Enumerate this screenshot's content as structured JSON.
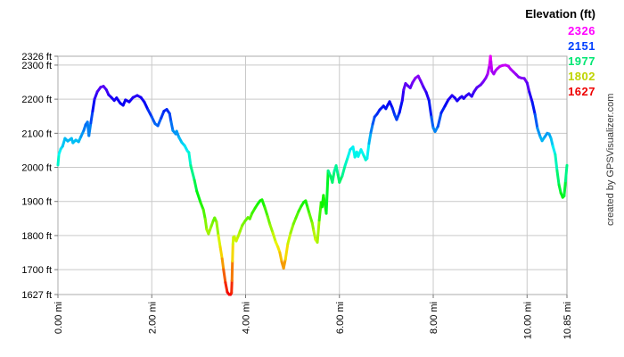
{
  "watermark": "created by GPSVisualizer.com",
  "chart_data": {
    "type": "line",
    "title": "Elevation (ft)",
    "xlabel": "",
    "ylabel": "",
    "xlim": [
      0,
      10.85
    ],
    "ylim": [
      1627,
      2326
    ],
    "grid": true,
    "legend": {
      "title": "Elevation (ft)",
      "position": "top-right",
      "entries": [
        {
          "label": "2326",
          "color": "#ff00ff"
        },
        {
          "label": "2151",
          "color": "#0040ff"
        },
        {
          "label": "1977",
          "color": "#00e673"
        },
        {
          "label": "1802",
          "color": "#bfd400"
        },
        {
          "label": "1627",
          "color": "#ee0000"
        }
      ]
    },
    "color_scale": {
      "description": "line stroke colored by elevation, red (low) to magenta (high)",
      "min_value": 1627,
      "min_hue_deg": 0,
      "max_value": 2326,
      "max_hue_deg": 300
    },
    "y_ticks": [
      {
        "label": "2326 ft",
        "value": 2326
      },
      {
        "label": "2300 ft",
        "value": 2300
      },
      {
        "label": "2200 ft",
        "value": 2200
      },
      {
        "label": "2100 ft",
        "value": 2100
      },
      {
        "label": "2000 ft",
        "value": 2000
      },
      {
        "label": "1900 ft",
        "value": 1900
      },
      {
        "label": "1800 ft",
        "value": 1800
      },
      {
        "label": "1700 ft",
        "value": 1700
      },
      {
        "label": "1627 ft",
        "value": 1627
      }
    ],
    "x_ticks": [
      {
        "label": "0.00 mi",
        "value": 0
      },
      {
        "label": "2.00 mi",
        "value": 2
      },
      {
        "label": "4.00 mi",
        "value": 4
      },
      {
        "label": "6.00 mi",
        "value": 6
      },
      {
        "label": "8.00 mi",
        "value": 8
      },
      {
        "label": "10.00 mi",
        "value": 10
      },
      {
        "label": "10.85 mi",
        "value": 10.85
      }
    ],
    "points": [
      [
        0.0,
        2007
      ],
      [
        0.02,
        2038
      ],
      [
        0.06,
        2054
      ],
      [
        0.1,
        2062
      ],
      [
        0.15,
        2085
      ],
      [
        0.21,
        2077
      ],
      [
        0.29,
        2085
      ],
      [
        0.32,
        2072
      ],
      [
        0.38,
        2080
      ],
      [
        0.44,
        2075
      ],
      [
        0.49,
        2090
      ],
      [
        0.55,
        2108
      ],
      [
        0.59,
        2125
      ],
      [
        0.63,
        2133
      ],
      [
        0.66,
        2093
      ],
      [
        0.7,
        2130
      ],
      [
        0.74,
        2165
      ],
      [
        0.78,
        2200
      ],
      [
        0.84,
        2222
      ],
      [
        0.91,
        2235
      ],
      [
        0.97,
        2238
      ],
      [
        1.03,
        2228
      ],
      [
        1.08,
        2213
      ],
      [
        1.14,
        2205
      ],
      [
        1.2,
        2196
      ],
      [
        1.25,
        2204
      ],
      [
        1.33,
        2188
      ],
      [
        1.39,
        2182
      ],
      [
        1.44,
        2198
      ],
      [
        1.52,
        2192
      ],
      [
        1.6,
        2205
      ],
      [
        1.69,
        2211
      ],
      [
        1.77,
        2205
      ],
      [
        1.84,
        2192
      ],
      [
        1.92,
        2169
      ],
      [
        2.0,
        2148
      ],
      [
        2.07,
        2128
      ],
      [
        2.13,
        2122
      ],
      [
        2.2,
        2145
      ],
      [
        2.26,
        2165
      ],
      [
        2.32,
        2170
      ],
      [
        2.38,
        2158
      ],
      [
        2.41,
        2135
      ],
      [
        2.45,
        2108
      ],
      [
        2.51,
        2098
      ],
      [
        2.53,
        2106
      ],
      [
        2.58,
        2088
      ],
      [
        2.64,
        2073
      ],
      [
        2.7,
        2064
      ],
      [
        2.76,
        2048
      ],
      [
        2.79,
        2044
      ],
      [
        2.83,
        2005
      ],
      [
        2.91,
        1962
      ],
      [
        2.96,
        1930
      ],
      [
        3.04,
        1897
      ],
      [
        3.1,
        1876
      ],
      [
        3.14,
        1848
      ],
      [
        3.17,
        1818
      ],
      [
        3.21,
        1805
      ],
      [
        3.27,
        1828
      ],
      [
        3.31,
        1843
      ],
      [
        3.34,
        1852
      ],
      [
        3.38,
        1840
      ],
      [
        3.42,
        1800
      ],
      [
        3.46,
        1766
      ],
      [
        3.5,
        1732
      ],
      [
        3.53,
        1700
      ],
      [
        3.57,
        1662
      ],
      [
        3.61,
        1634
      ],
      [
        3.65,
        1627
      ],
      [
        3.68,
        1627
      ],
      [
        3.7,
        1632
      ],
      [
        3.71,
        1668
      ],
      [
        3.72,
        1725
      ],
      [
        3.73,
        1775
      ],
      [
        3.74,
        1795
      ],
      [
        3.76,
        1797
      ],
      [
        3.8,
        1784
      ],
      [
        3.84,
        1797
      ],
      [
        3.88,
        1812
      ],
      [
        3.93,
        1830
      ],
      [
        3.99,
        1843
      ],
      [
        4.05,
        1853
      ],
      [
        4.09,
        1849
      ],
      [
        4.14,
        1866
      ],
      [
        4.2,
        1880
      ],
      [
        4.26,
        1893
      ],
      [
        4.31,
        1902
      ],
      [
        4.35,
        1905
      ],
      [
        4.41,
        1882
      ],
      [
        4.47,
        1856
      ],
      [
        4.52,
        1832
      ],
      [
        4.58,
        1808
      ],
      [
        4.64,
        1782
      ],
      [
        4.69,
        1766
      ],
      [
        4.73,
        1750
      ],
      [
        4.77,
        1723
      ],
      [
        4.81,
        1704
      ],
      [
        4.85,
        1731
      ],
      [
        4.9,
        1776
      ],
      [
        4.96,
        1808
      ],
      [
        5.02,
        1834
      ],
      [
        5.07,
        1851
      ],
      [
        5.13,
        1871
      ],
      [
        5.19,
        1887
      ],
      [
        5.24,
        1898
      ],
      [
        5.28,
        1902
      ],
      [
        5.32,
        1883
      ],
      [
        5.36,
        1864
      ],
      [
        5.42,
        1837
      ],
      [
        5.45,
        1815
      ],
      [
        5.49,
        1788
      ],
      [
        5.53,
        1780
      ],
      [
        5.57,
        1845
      ],
      [
        5.61,
        1897
      ],
      [
        5.63,
        1884
      ],
      [
        5.66,
        1918
      ],
      [
        5.72,
        1865
      ],
      [
        5.76,
        1990
      ],
      [
        5.81,
        1975
      ],
      [
        5.85,
        1956
      ],
      [
        5.89,
        1988
      ],
      [
        5.93,
        2005
      ],
      [
        5.97,
        1978
      ],
      [
        6.0,
        1956
      ],
      [
        6.06,
        1975
      ],
      [
        6.12,
        2005
      ],
      [
        6.18,
        2030
      ],
      [
        6.23,
        2052
      ],
      [
        6.29,
        2060
      ],
      [
        6.33,
        2030
      ],
      [
        6.37,
        2045
      ],
      [
        6.4,
        2032
      ],
      [
        6.46,
        2052
      ],
      [
        6.52,
        2034
      ],
      [
        6.56,
        2022
      ],
      [
        6.59,
        2026
      ],
      [
        6.63,
        2070
      ],
      [
        6.67,
        2102
      ],
      [
        6.71,
        2127
      ],
      [
        6.75,
        2148
      ],
      [
        6.8,
        2156
      ],
      [
        6.86,
        2169
      ],
      [
        6.94,
        2180
      ],
      [
        6.99,
        2172
      ],
      [
        7.03,
        2183
      ],
      [
        7.07,
        2193
      ],
      [
        7.13,
        2174
      ],
      [
        7.18,
        2153
      ],
      [
        7.22,
        2140
      ],
      [
        7.28,
        2161
      ],
      [
        7.34,
        2196
      ],
      [
        7.37,
        2228
      ],
      [
        7.41,
        2246
      ],
      [
        7.47,
        2238
      ],
      [
        7.51,
        2233
      ],
      [
        7.56,
        2249
      ],
      [
        7.62,
        2262
      ],
      [
        7.68,
        2268
      ],
      [
        7.73,
        2254
      ],
      [
        7.79,
        2236
      ],
      [
        7.85,
        2220
      ],
      [
        7.91,
        2196
      ],
      [
        7.96,
        2148
      ],
      [
        8.0,
        2116
      ],
      [
        8.04,
        2105
      ],
      [
        8.1,
        2120
      ],
      [
        8.17,
        2160
      ],
      [
        8.25,
        2180
      ],
      [
        8.32,
        2198
      ],
      [
        8.4,
        2211
      ],
      [
        8.46,
        2204
      ],
      [
        8.51,
        2195
      ],
      [
        8.57,
        2204
      ],
      [
        8.61,
        2208
      ],
      [
        8.65,
        2202
      ],
      [
        8.7,
        2210
      ],
      [
        8.76,
        2216
      ],
      [
        8.82,
        2208
      ],
      [
        8.87,
        2222
      ],
      [
        8.93,
        2234
      ],
      [
        9.01,
        2242
      ],
      [
        9.06,
        2250
      ],
      [
        9.12,
        2262
      ],
      [
        9.16,
        2274
      ],
      [
        9.2,
        2300
      ],
      [
        9.22,
        2326
      ],
      [
        9.23,
        2310
      ],
      [
        9.25,
        2282
      ],
      [
        9.29,
        2274
      ],
      [
        9.33,
        2284
      ],
      [
        9.37,
        2290
      ],
      [
        9.42,
        2296
      ],
      [
        9.48,
        2299
      ],
      [
        9.54,
        2300
      ],
      [
        9.6,
        2297
      ],
      [
        9.65,
        2288
      ],
      [
        9.71,
        2280
      ],
      [
        9.77,
        2272
      ],
      [
        9.82,
        2265
      ],
      [
        9.88,
        2262
      ],
      [
        9.94,
        2261
      ],
      [
        10.0,
        2248
      ],
      [
        10.05,
        2220
      ],
      [
        10.11,
        2192
      ],
      [
        10.17,
        2155
      ],
      [
        10.22,
        2115
      ],
      [
        10.28,
        2090
      ],
      [
        10.32,
        2078
      ],
      [
        10.38,
        2090
      ],
      [
        10.43,
        2100
      ],
      [
        10.47,
        2098
      ],
      [
        10.51,
        2085
      ],
      [
        10.55,
        2062
      ],
      [
        10.6,
        2038
      ],
      [
        10.64,
        1990
      ],
      [
        10.68,
        1949
      ],
      [
        10.72,
        1925
      ],
      [
        10.76,
        1912
      ],
      [
        10.79,
        1916
      ],
      [
        10.82,
        1960
      ],
      [
        10.85,
        2006
      ]
    ]
  }
}
